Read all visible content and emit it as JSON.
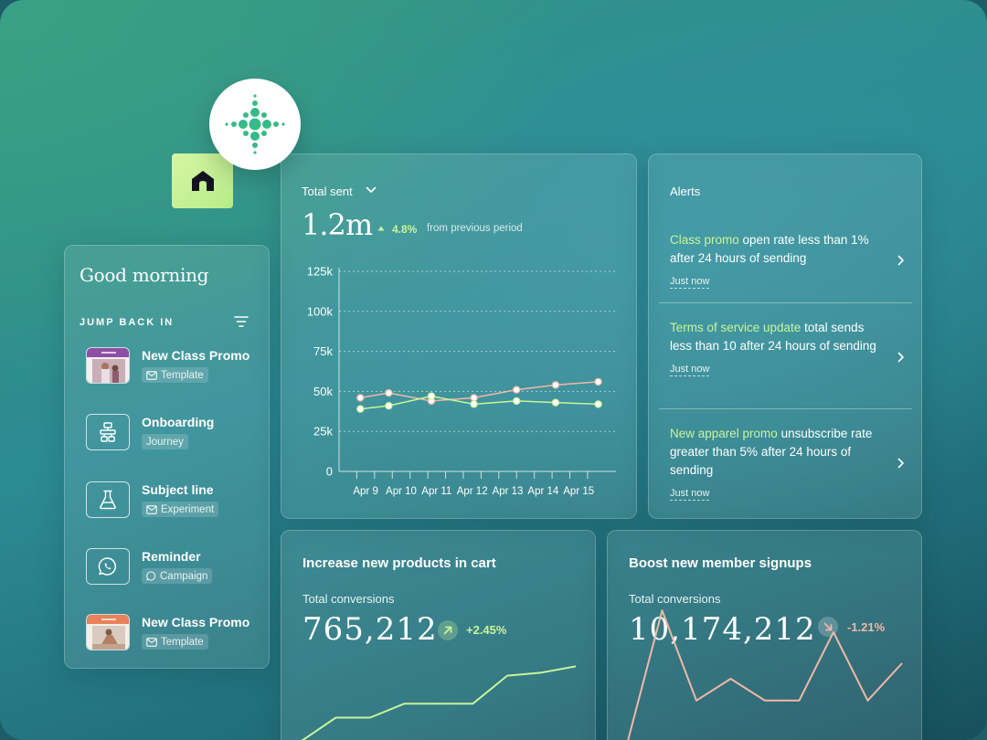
{
  "left_panel": {
    "greeting": "Good morning",
    "section_label": "JUMP BACK IN",
    "items": [
      {
        "title": "New Class Promo",
        "tag": "Template",
        "tag_icon": "mail-icon",
        "thumb": "promo-thumbnail"
      },
      {
        "title": "Onboarding",
        "tag": "Journey",
        "tag_icon": "",
        "thumb": "journey-flow-icon"
      },
      {
        "title": "Subject line",
        "tag": "Experiment",
        "tag_icon": "mail-icon",
        "thumb": "flask-icon"
      },
      {
        "title": "Reminder",
        "tag": "Campaign",
        "tag_icon": "whatsapp-icon",
        "thumb": "whatsapp-icon"
      },
      {
        "title": "New Class Promo",
        "tag": "Template",
        "tag_icon": "mail-icon",
        "thumb": "promo-thumbnail"
      }
    ]
  },
  "total_sent": {
    "label": "Total sent",
    "value": "1.2m",
    "change": "4.8%",
    "change_suffix": "from previous period"
  },
  "chart_data": {
    "type": "line",
    "x": [
      "Apr 9",
      "Apr 10",
      "Apr 11",
      "Apr 12",
      "Apr 13",
      "Apr 14",
      "Apr 15"
    ],
    "y_ticks": [
      "0",
      "25k",
      "50k",
      "75k",
      "100k",
      "125k"
    ],
    "ylim": [
      0,
      125000
    ],
    "grid": "dashed horizontal",
    "series": [
      {
        "color": "#f0b8a8",
        "points": [
          [
            8.6,
            46000
          ],
          [
            9.4,
            49000
          ],
          [
            10.6,
            44000
          ],
          [
            11.8,
            46000
          ],
          [
            13.0,
            51000
          ],
          [
            14.1,
            54000
          ],
          [
            15.3,
            56000
          ]
        ]
      },
      {
        "color": "#c8f59a",
        "points": [
          [
            8.6,
            39000
          ],
          [
            9.4,
            41000
          ],
          [
            10.6,
            47000
          ],
          [
            11.8,
            42000
          ],
          [
            13.0,
            44000
          ],
          [
            14.1,
            43000
          ],
          [
            15.3,
            42000
          ]
        ]
      }
    ]
  },
  "alerts": {
    "title": "Alerts",
    "items": [
      {
        "highlight": "Class promo",
        "text": " open rate less than 1% after 24 hours of sending",
        "time": "Just now"
      },
      {
        "highlight": "Terms of service update",
        "text": " total sends less than 10 after 24 hours of sending",
        "time": "Just now"
      },
      {
        "highlight": "New apparel promo",
        "text": " unsubscribe rate greater than 5% after 24 hours of sending",
        "time": "Just now"
      }
    ]
  },
  "conversions": [
    {
      "title": "Increase new products in cart",
      "subtitle": "Total conversions",
      "value": "765,212",
      "change": "+2.45%",
      "direction": "up",
      "color": "#c8f59a",
      "trend": [
        0,
        15,
        15,
        24,
        24,
        24,
        42,
        44,
        48
      ]
    },
    {
      "title": "Boost new member signups",
      "subtitle": "Total conversions",
      "value": "10,174,212",
      "change": "-1.21%",
      "direction": "down",
      "color": "#f0b8a8",
      "trend": [
        0,
        84,
        26,
        40,
        26,
        26,
        70,
        26,
        50
      ]
    }
  ]
}
